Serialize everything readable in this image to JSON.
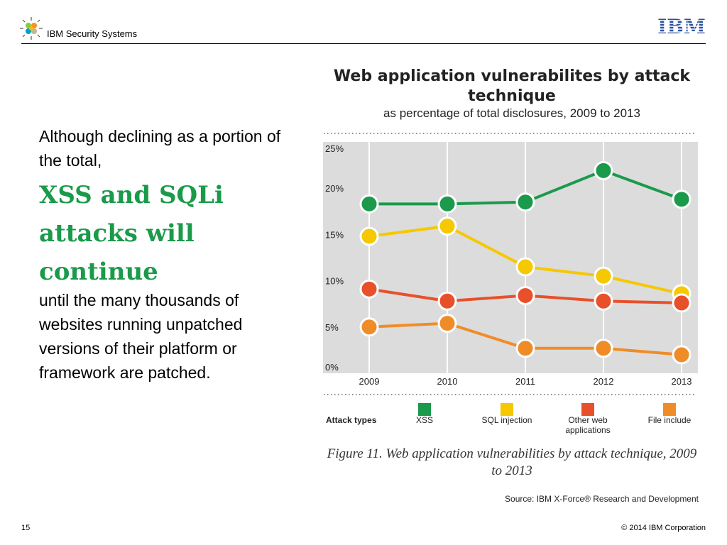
{
  "header": {
    "title": "IBM Security Systems",
    "logo_text": "IBM"
  },
  "left_text": {
    "intro": "Although declining as a portion of the total,",
    "headline": "XSS and SQLi attacks will continue",
    "body": "until the many thousands of websites running unpatched versions of their platform or framework are patched."
  },
  "chart_data": {
    "type": "line",
    "title": "Web application vulnerabilites by attack technique",
    "subtitle": "as percentage of total disclosures, 2009 to 2013",
    "categories": [
      "2009",
      "2010",
      "2011",
      "2012",
      "2013"
    ],
    "ylim": [
      0,
      25
    ],
    "yticks": [
      "0%",
      "5%",
      "10%",
      "15%",
      "20%",
      "25%"
    ],
    "grid": true,
    "legend_title": "Attack types",
    "legend_position": "bottom",
    "series": [
      {
        "name": "XSS",
        "color": "#1a9a4a",
        "values": [
          18.3,
          18.3,
          18.5,
          21.9,
          18.8
        ]
      },
      {
        "name": "SQL injection",
        "color": "#f5c800",
        "values": [
          14.8,
          15.9,
          11.5,
          10.5,
          8.6
        ]
      },
      {
        "name": "Other web applications",
        "color": "#e8502a",
        "values": [
          9.1,
          7.8,
          8.4,
          7.8,
          7.6
        ]
      },
      {
        "name": "File include",
        "color": "#f08c28",
        "values": [
          5.0,
          5.4,
          2.7,
          2.7,
          2.0
        ]
      }
    ]
  },
  "figure_caption": "Figure 11. Web application vulnerabilities by attack technique, 2009 to 2013",
  "source": "Source: IBM X-Force® Research and Development",
  "footer": {
    "page_number": "15",
    "copyright": "© 2014 IBM Corporation"
  }
}
